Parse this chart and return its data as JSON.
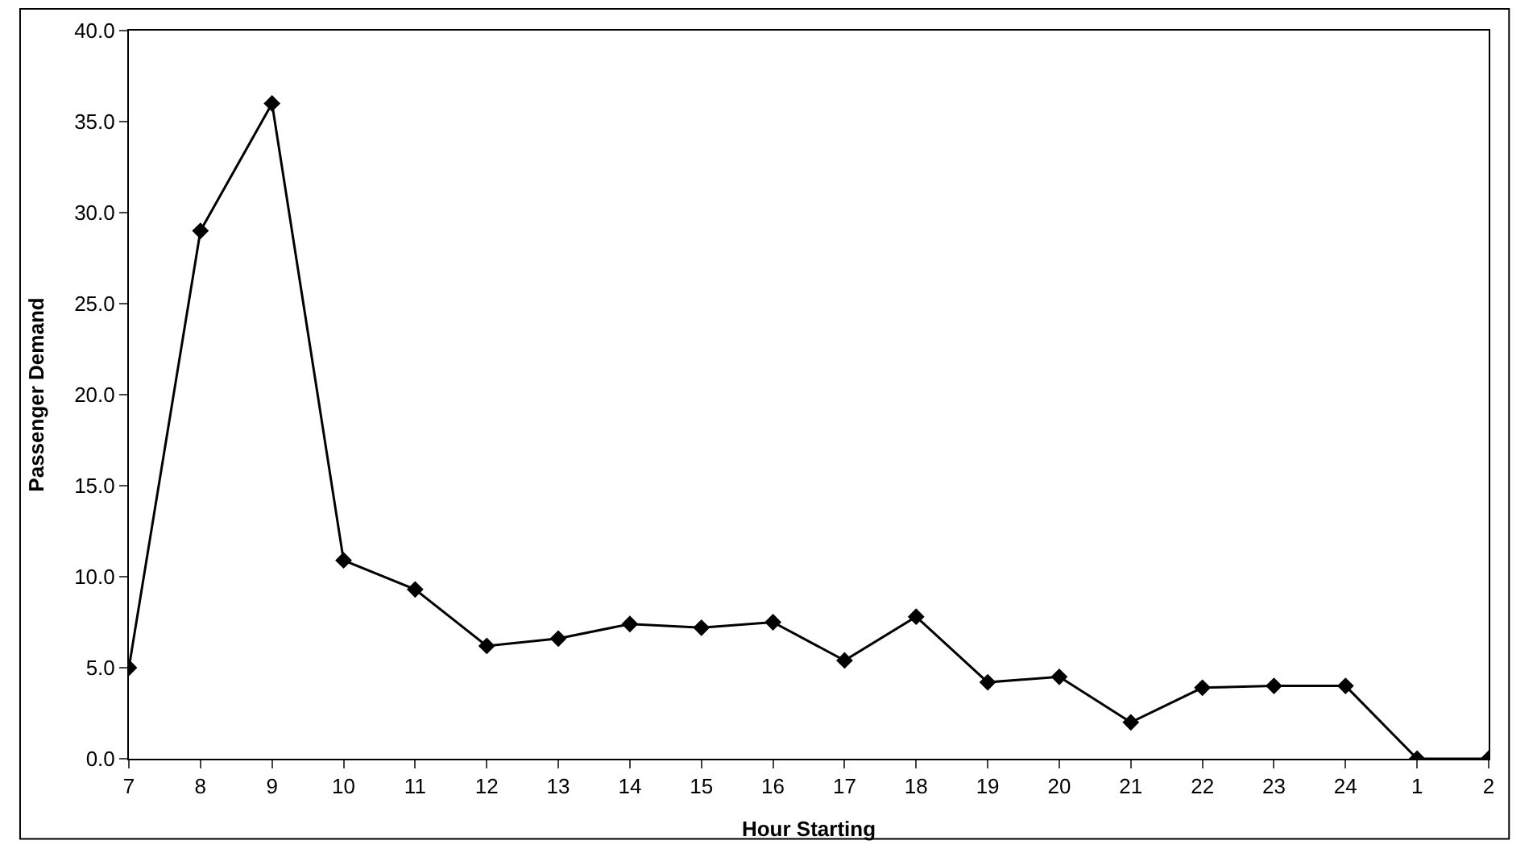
{
  "chart_data": {
    "type": "line",
    "xlabel": "Hour Starting",
    "ylabel": "Passenger Demand",
    "categories": [
      "7",
      "8",
      "9",
      "10",
      "11",
      "12",
      "13",
      "14",
      "15",
      "16",
      "17",
      "18",
      "19",
      "20",
      "21",
      "22",
      "23",
      "24",
      "1",
      "2"
    ],
    "series": [
      {
        "color": "#000000",
        "values": [
          5.0,
          29.0,
          36.0,
          10.9,
          9.3,
          6.2,
          6.6,
          7.4,
          7.2,
          7.5,
          5.4,
          7.8,
          4.2,
          4.5,
          2.0,
          3.9,
          4.0,
          4.0,
          0.0,
          0.0
        ]
      }
    ],
    "ylim": [
      0,
      40
    ],
    "yticks": [
      {
        "value": 0,
        "label": "0.0"
      },
      {
        "value": 5,
        "label": "5.0"
      },
      {
        "value": 10,
        "label": "10.0"
      },
      {
        "value": 15,
        "label": "15.0"
      },
      {
        "value": 20,
        "label": "20.0"
      },
      {
        "value": 25,
        "label": "25.0"
      },
      {
        "value": 30,
        "label": "30.0"
      },
      {
        "value": 35,
        "label": "35.0"
      },
      {
        "value": 40,
        "label": "40.0"
      }
    ],
    "grid": false,
    "marker": "diamond",
    "line_style": "solid"
  }
}
